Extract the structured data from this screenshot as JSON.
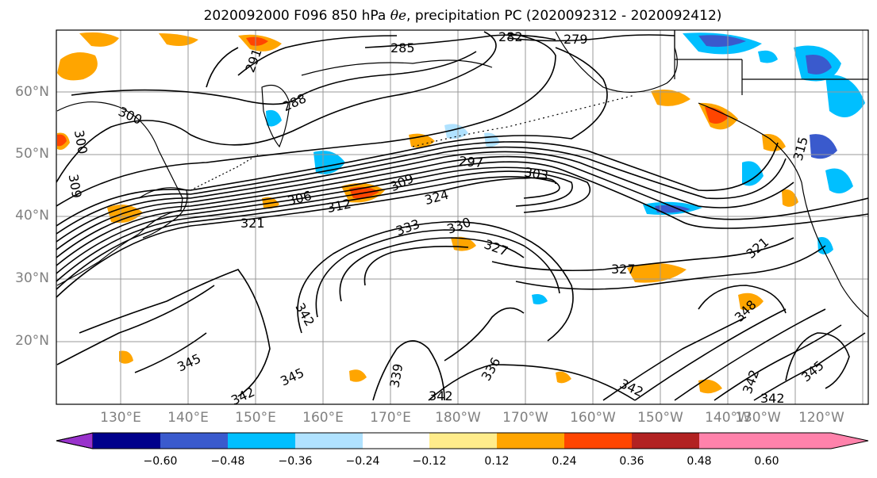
{
  "title": {
    "prefix": "2020092000 F096 850 hPa ",
    "symbol": "θe",
    "suffix": ", precipitation PC (2020092312 - 2020092412)"
  },
  "map": {
    "lat_labels": [
      "60°N",
      "50°N",
      "40°N",
      "30°N",
      "20°N"
    ],
    "lon_labels": [
      "130°E",
      "140°E",
      "150°E",
      "160°E",
      "170°E",
      "180°W",
      "170°W",
      "160°W",
      "150°W",
      "140°W",
      "130°W",
      "120°W"
    ],
    "contour_labels": [
      "282",
      "279",
      "285",
      "291",
      "288",
      "300",
      "300",
      "309",
      "306",
      "312",
      "321",
      "309",
      "324",
      "297",
      "303",
      "333",
      "330",
      "327",
      "327",
      "321",
      "342",
      "345",
      "345",
      "339",
      "336",
      "342",
      "342",
      "342",
      "342",
      "345",
      "348",
      "315"
    ],
    "frame_color": "#000000",
    "grid_color": "#999999"
  },
  "colorbar": {
    "colors": [
      "#9932cc",
      "#00008b",
      "#3a5acd",
      "#00bfff",
      "#b0e2ff",
      "#ffffff",
      "#ffec8b",
      "#ffa500",
      "#ff4500",
      "#b22222",
      "#ff82ab"
    ],
    "ticks": [
      "−0.60",
      "−0.48",
      "−0.36",
      "−0.24",
      "−0.12",
      "0.12",
      "0.24",
      "0.36",
      "0.48",
      "0.60"
    ]
  }
}
